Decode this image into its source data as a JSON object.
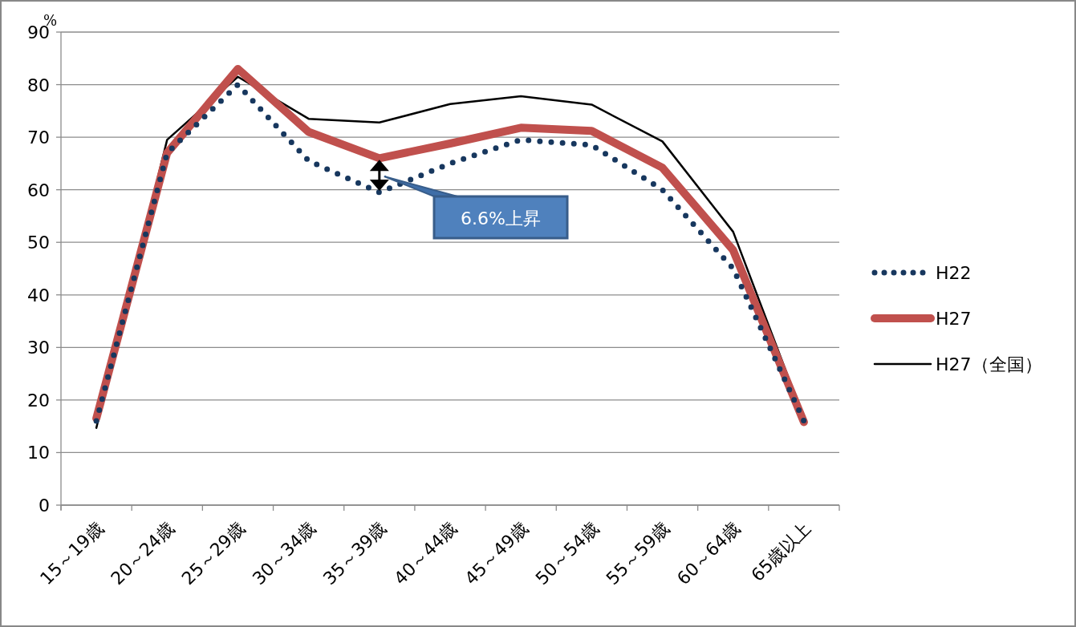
{
  "chart_data": {
    "type": "line",
    "ylabel": "%",
    "categories": [
      "15～19歳",
      "20～24歳",
      "25～29歳",
      "30～34歳",
      "35～39歳",
      "40～44歳",
      "45～49歳",
      "50～54歳",
      "55～59歳",
      "60～64歳",
      "65歳以上"
    ],
    "series": [
      {
        "name": "H22",
        "color": "#17375e",
        "line_style": "dotted",
        "values": [
          16,
          67,
          80,
          65.5,
          59.5,
          65,
          69.5,
          68.5,
          60,
          45,
          16
        ]
      },
      {
        "name": "H27",
        "color": "#c0504d",
        "line_style": "solid",
        "values": [
          16.5,
          67,
          83,
          71,
          66,
          68.8,
          71.8,
          71.2,
          64.2,
          48.5,
          15.8
        ]
      },
      {
        "name": "H27（全国）",
        "color": "#000000",
        "line_style": "solid",
        "values": [
          14.7,
          69.5,
          81.5,
          73.5,
          72.8,
          76.3,
          77.8,
          76.2,
          69.2,
          52,
          16.5
        ]
      }
    ],
    "ylim": [
      0,
      90
    ],
    "yticks": [
      0,
      10,
      20,
      30,
      40,
      50,
      60,
      70,
      80,
      90
    ],
    "grid": "y",
    "legend": "right",
    "marker": "none",
    "annotations": [
      "6.6%上昇"
    ]
  }
}
